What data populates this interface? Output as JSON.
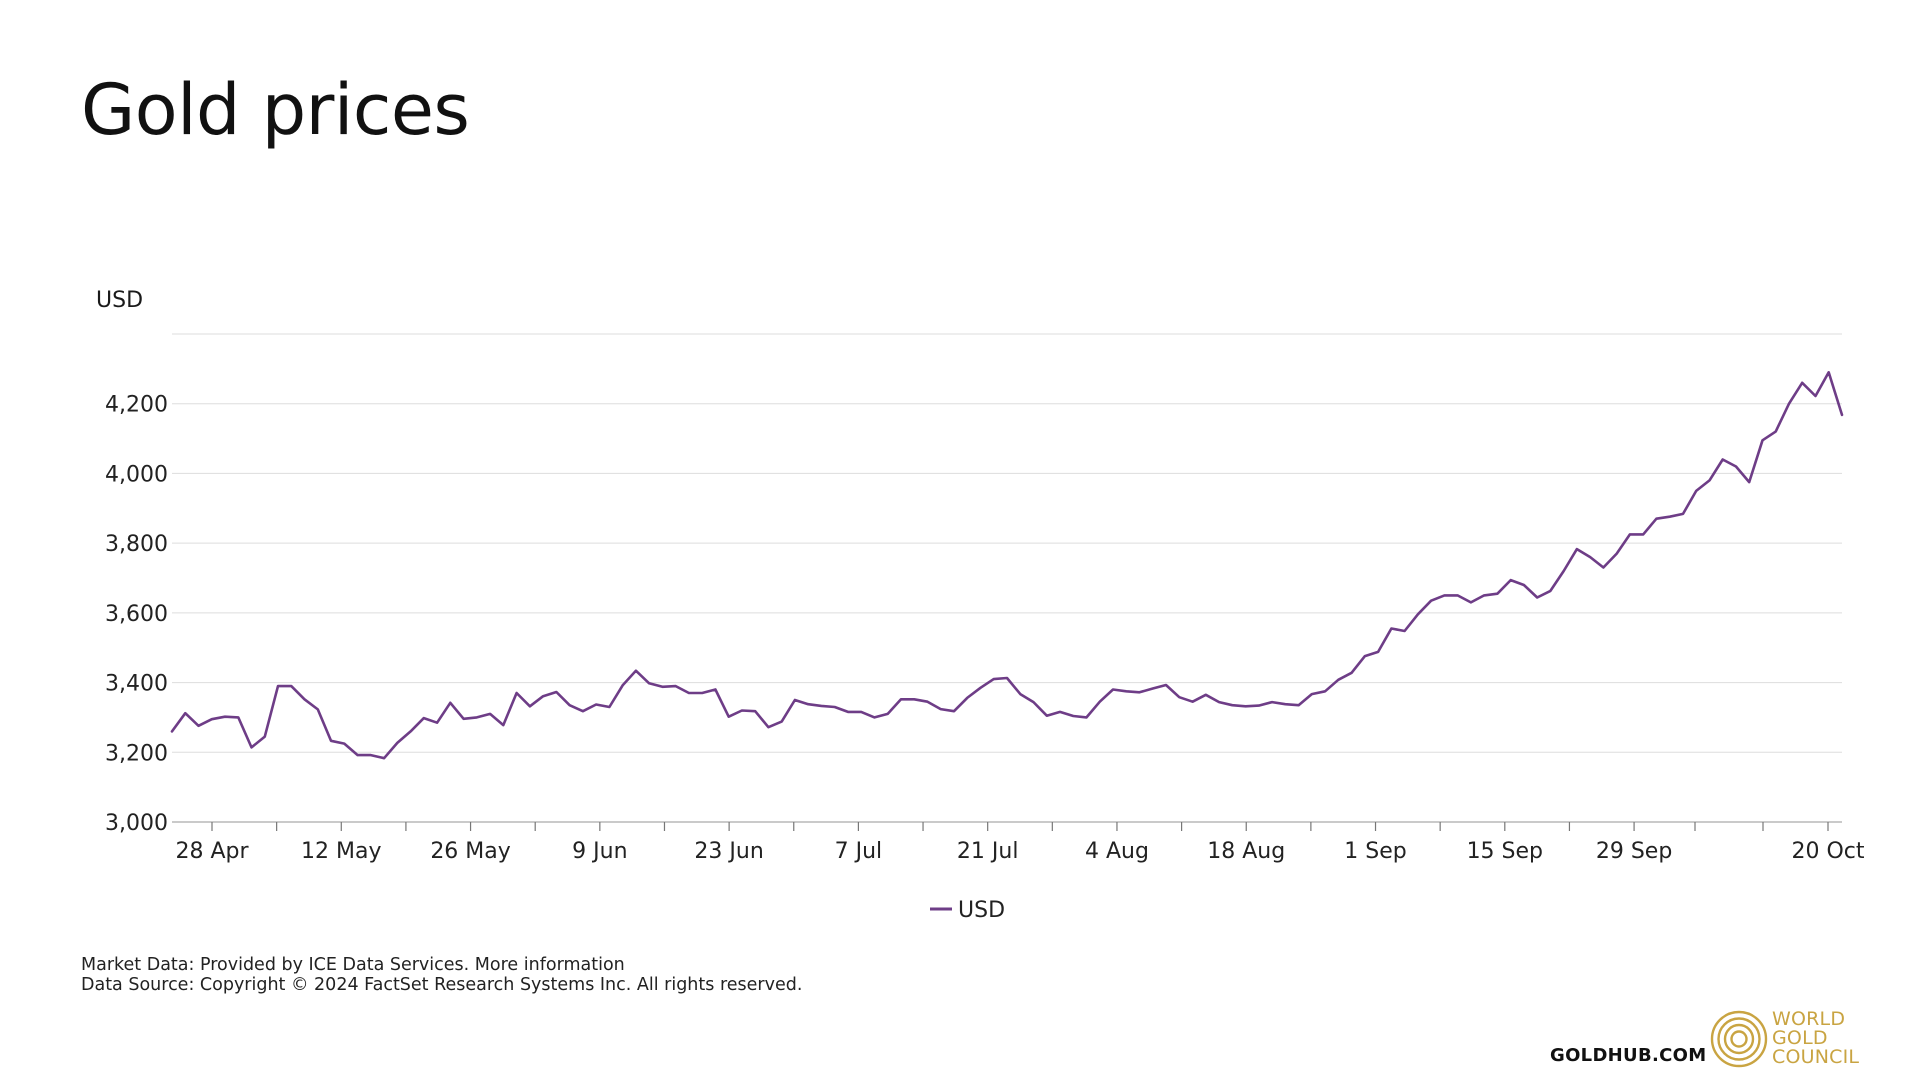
{
  "page": {
    "title": "Gold prices"
  },
  "footer": {
    "line1_prefix": "Market Data: Provided by ICE Data Services. ",
    "line1_link": "More information",
    "line2": "Data Source: Copyright © 2024 FactSet Research Systems Inc. All rights reserved."
  },
  "branding": {
    "site": "GOLDHUB.COM",
    "logo_line1": "WORLD",
    "logo_line2": "GOLD",
    "logo_line3": "COUNCIL",
    "gold_color": "#C9A442"
  },
  "chart_data": {
    "type": "line",
    "title": "Gold prices",
    "ylabel": "USD",
    "xlabel": "",
    "ylim": [
      3000,
      4400
    ],
    "yticks": [
      3000,
      3200,
      3400,
      3600,
      3800,
      4000,
      4200
    ],
    "ytick_labels": [
      "3,000",
      "3,200",
      "3,400",
      "3,600",
      "3,800",
      "4,000",
      "4,200"
    ],
    "xlim": [
      "2025-04-25",
      "2025-10-22"
    ],
    "xtick_labels": [
      {
        "label": "28 Apr",
        "date": "2025-04-28"
      },
      {
        "label": "12 May",
        "date": "2025-05-12"
      },
      {
        "label": "26 May",
        "date": "2025-05-26"
      },
      {
        "label": "9 Jun",
        "date": "2025-06-09"
      },
      {
        "label": "23 Jun",
        "date": "2025-06-23"
      },
      {
        "label": "7 Jul",
        "date": "2025-07-07"
      },
      {
        "label": "21 Jul",
        "date": "2025-07-21"
      },
      {
        "label": "4 Aug",
        "date": "2025-08-04"
      },
      {
        "label": "18 Aug",
        "date": "2025-08-18"
      },
      {
        "label": "1 Sep",
        "date": "2025-09-01"
      },
      {
        "label": "15 Sep",
        "date": "2025-09-15"
      },
      {
        "label": "29 Sep",
        "date": "2025-09-29"
      },
      {
        "label": "20 Oct",
        "date": "2025-10-20"
      }
    ],
    "grid": true,
    "legend": "bottom-center",
    "series": [
      {
        "name": "USD",
        "color": "#6E3D87",
        "values": [
          3260,
          3312,
          3276,
          3295,
          3302,
          3300,
          3214,
          3245,
          3390,
          3390,
          3352,
          3323,
          3233,
          3225,
          3192,
          3192,
          3183,
          3227,
          3260,
          3298,
          3285,
          3342,
          3296,
          3300,
          3310,
          3278,
          3370,
          3332,
          3361,
          3373,
          3335,
          3318,
          3337,
          3330,
          3392,
          3434,
          3398,
          3388,
          3390,
          3370,
          3370,
          3380,
          3302,
          3320,
          3318,
          3272,
          3288,
          3350,
          3338,
          3333,
          3330,
          3316,
          3316,
          3300,
          3310,
          3352,
          3352,
          3345,
          3324,
          3318,
          3356,
          3385,
          3410,
          3413,
          3367,
          3344,
          3305,
          3316,
          3304,
          3300,
          3345,
          3380,
          3375,
          3372,
          3383,
          3393,
          3358,
          3345,
          3365,
          3344,
          3335,
          3332,
          3334,
          3344,
          3338,
          3335,
          3367,
          3375,
          3408,
          3428,
          3476,
          3488,
          3555,
          3548,
          3596,
          3635,
          3650,
          3650,
          3630,
          3650,
          3655,
          3694,
          3680,
          3644,
          3663,
          3720,
          3783,
          3760,
          3730,
          3770,
          3825,
          3825,
          3870,
          3876,
          3884,
          3950,
          3980,
          4040,
          4020,
          3975,
          4095,
          4120,
          4200,
          4260,
          4222,
          4290,
          4168
        ]
      }
    ]
  }
}
